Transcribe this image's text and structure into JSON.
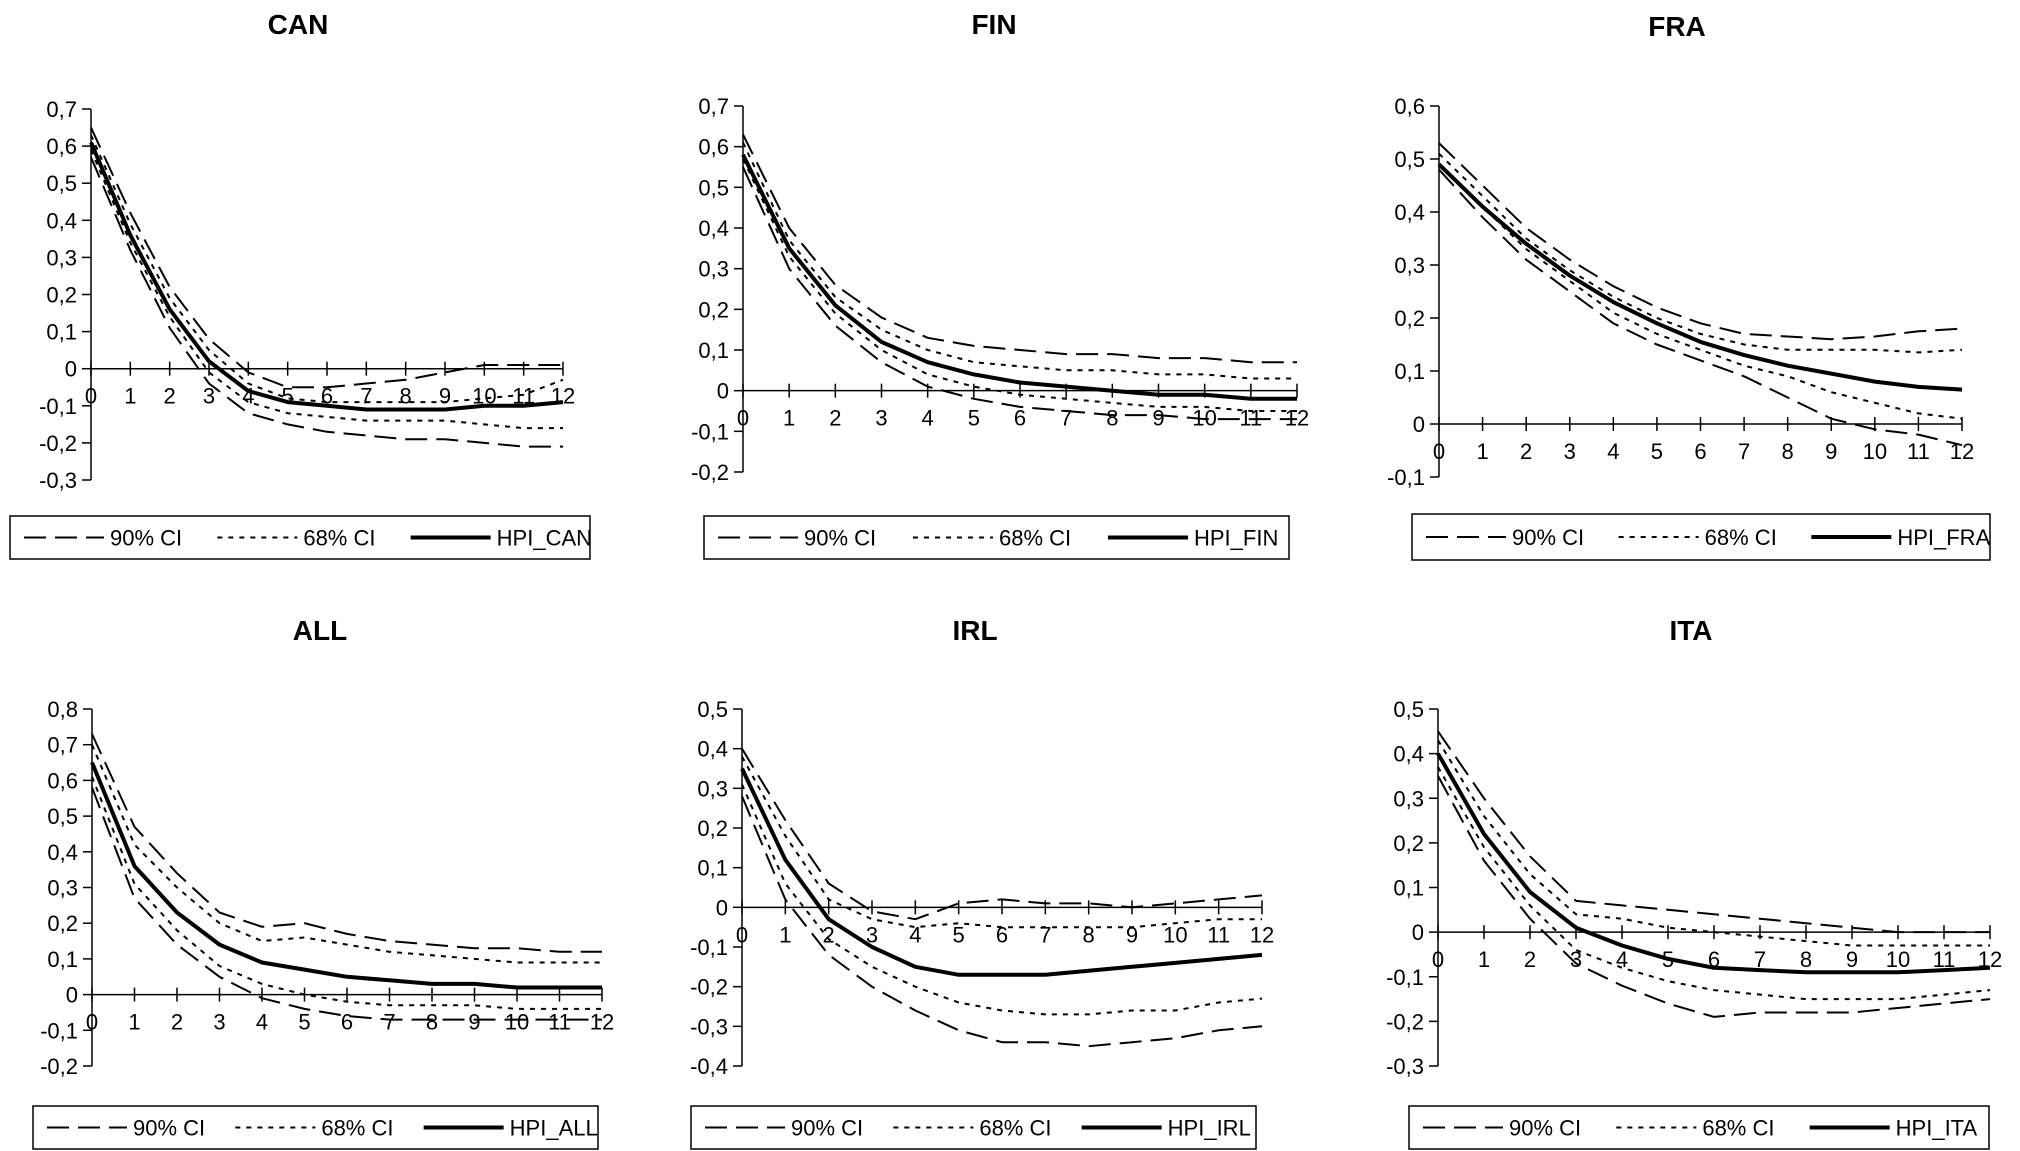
{
  "chart_data": [
    {
      "type": "line",
      "title": "CAN",
      "x": [
        0,
        1,
        2,
        3,
        4,
        5,
        6,
        7,
        8,
        9,
        10,
        11,
        12
      ],
      "ylim": [
        -0.3,
        0.7
      ],
      "yticks": [
        "0,7",
        "0,6",
        "0,5",
        "0,4",
        "0,3",
        "0,2",
        "0,1",
        "0",
        "-0,1",
        "-0,2",
        "-0,3"
      ],
      "xticks": [
        "0",
        "1",
        "2",
        "3",
        "4",
        "5",
        "6",
        "7",
        "8",
        "9",
        "10",
        "11",
        "12"
      ],
      "legend": [
        "90% CI",
        "68% CI",
        "HPI_CAN"
      ],
      "series": [
        {
          "name": "90% CI",
          "style": "dash",
          "values": [
            0.65,
            0.42,
            0.22,
            0.08,
            -0.01,
            -0.05,
            -0.05,
            -0.04,
            -0.03,
            -0.01,
            0.01,
            0.01,
            0.01
          ]
        },
        {
          "name": "90% CI",
          "style": "dash",
          "values": [
            0.57,
            0.32,
            0.11,
            -0.04,
            -0.12,
            -0.15,
            -0.17,
            -0.18,
            -0.19,
            -0.19,
            -0.2,
            -0.21,
            -0.21
          ]
        },
        {
          "name": "68% CI",
          "style": "dot",
          "values": [
            0.63,
            0.39,
            0.19,
            0.05,
            -0.04,
            -0.08,
            -0.09,
            -0.09,
            -0.09,
            -0.09,
            -0.08,
            -0.07,
            -0.03
          ]
        },
        {
          "name": "68% CI",
          "style": "dot",
          "values": [
            0.59,
            0.34,
            0.14,
            -0.01,
            -0.09,
            -0.12,
            -0.13,
            -0.14,
            -0.14,
            -0.14,
            -0.15,
            -0.16,
            -0.16
          ]
        },
        {
          "name": "HPI_CAN",
          "style": "solid",
          "values": [
            0.61,
            0.36,
            0.16,
            0.02,
            -0.06,
            -0.09,
            -0.1,
            -0.11,
            -0.11,
            -0.11,
            -0.1,
            -0.1,
            -0.09
          ]
        }
      ]
    },
    {
      "type": "line",
      "title": "FIN",
      "x": [
        0,
        1,
        2,
        3,
        4,
        5,
        6,
        7,
        8,
        9,
        10,
        11,
        12
      ],
      "ylim": [
        -0.2,
        0.7
      ],
      "yticks": [
        "0,7",
        "0,6",
        "0,5",
        "0,4",
        "0,3",
        "0,2",
        "0,1",
        "0",
        "-0,1",
        "-0,2"
      ],
      "xticks": [
        "0",
        "1",
        "2",
        "3",
        "4",
        "5",
        "6",
        "7",
        "8",
        "9",
        "10",
        "11",
        "12"
      ],
      "legend": [
        "90% CI",
        "68% CI",
        "HPI_FIN"
      ],
      "series": [
        {
          "name": "90% CI",
          "style": "dash",
          "values": [
            0.63,
            0.4,
            0.26,
            0.18,
            0.13,
            0.11,
            0.1,
            0.09,
            0.09,
            0.08,
            0.08,
            0.07,
            0.07
          ]
        },
        {
          "name": "90% CI",
          "style": "dash",
          "values": [
            0.55,
            0.3,
            0.16,
            0.07,
            0.01,
            -0.02,
            -0.04,
            -0.05,
            -0.06,
            -0.06,
            -0.07,
            -0.07,
            -0.07
          ]
        },
        {
          "name": "68% CI",
          "style": "dot",
          "values": [
            0.61,
            0.37,
            0.23,
            0.15,
            0.1,
            0.07,
            0.06,
            0.05,
            0.05,
            0.04,
            0.04,
            0.03,
            0.03
          ]
        },
        {
          "name": "68% CI",
          "style": "dot",
          "values": [
            0.57,
            0.33,
            0.19,
            0.1,
            0.04,
            0.01,
            -0.01,
            -0.02,
            -0.03,
            -0.04,
            -0.04,
            -0.05,
            -0.05
          ]
        },
        {
          "name": "HPI_FIN",
          "style": "solid",
          "values": [
            0.58,
            0.35,
            0.21,
            0.12,
            0.07,
            0.04,
            0.02,
            0.01,
            0.0,
            -0.01,
            -0.01,
            -0.02,
            -0.02
          ]
        }
      ]
    },
    {
      "type": "line",
      "title": "FRA",
      "x": [
        0,
        1,
        2,
        3,
        4,
        5,
        6,
        7,
        8,
        9,
        10,
        11,
        12
      ],
      "ylim": [
        -0.1,
        0.6
      ],
      "yticks": [
        "0,6",
        "0,5",
        "0,4",
        "0,3",
        "0,2",
        "0,1",
        "0",
        "-0,1"
      ],
      "xticks": [
        "0",
        "1",
        "2",
        "3",
        "4",
        "5",
        "6",
        "7",
        "8",
        "9",
        "10",
        "11",
        "12"
      ],
      "legend": [
        "90% CI",
        "68% CI",
        "HPI_FRA"
      ],
      "series": [
        {
          "name": "90% CI",
          "style": "dash",
          "values": [
            0.53,
            0.45,
            0.37,
            0.31,
            0.26,
            0.22,
            0.19,
            0.17,
            0.165,
            0.16,
            0.165,
            0.175,
            0.18
          ]
        },
        {
          "name": "90% CI",
          "style": "dash",
          "values": [
            0.48,
            0.39,
            0.31,
            0.25,
            0.19,
            0.15,
            0.12,
            0.09,
            0.05,
            0.01,
            -0.01,
            -0.02,
            -0.04
          ]
        },
        {
          "name": "68% CI",
          "style": "dot",
          "values": [
            0.51,
            0.43,
            0.35,
            0.29,
            0.24,
            0.2,
            0.17,
            0.15,
            0.14,
            0.14,
            0.14,
            0.135,
            0.14
          ]
        },
        {
          "name": "68% CI",
          "style": "dot",
          "values": [
            0.49,
            0.41,
            0.33,
            0.27,
            0.21,
            0.17,
            0.14,
            0.11,
            0.09,
            0.06,
            0.04,
            0.02,
            0.01
          ]
        },
        {
          "name": "HPI_FRA",
          "style": "solid",
          "values": [
            0.49,
            0.41,
            0.34,
            0.28,
            0.23,
            0.19,
            0.155,
            0.13,
            0.11,
            0.095,
            0.08,
            0.07,
            0.065
          ]
        }
      ]
    },
    {
      "type": "line",
      "title": "ALL",
      "x": [
        0,
        1,
        2,
        3,
        4,
        5,
        6,
        7,
        8,
        9,
        10,
        11,
        12
      ],
      "ylim": [
        -0.2,
        0.8
      ],
      "yticks": [
        "0,8",
        "0,7",
        "0,6",
        "0,5",
        "0,4",
        "0,3",
        "0,2",
        "0,1",
        "0",
        "-0,1",
        "-0,2"
      ],
      "xticks": [
        "0",
        "1",
        "2",
        "3",
        "4",
        "5",
        "6",
        "7",
        "8",
        "9",
        "10",
        "11",
        "12"
      ],
      "legend": [
        "90% CI",
        "68% CI",
        "HPI_ALL"
      ],
      "series": [
        {
          "name": "90% CI",
          "style": "dash",
          "values": [
            0.73,
            0.47,
            0.34,
            0.23,
            0.19,
            0.2,
            0.17,
            0.15,
            0.14,
            0.13,
            0.13,
            0.12,
            0.12
          ]
        },
        {
          "name": "90% CI",
          "style": "dash",
          "values": [
            0.58,
            0.27,
            0.14,
            0.05,
            -0.01,
            -0.04,
            -0.06,
            -0.07,
            -0.07,
            -0.07,
            -0.07,
            -0.07,
            -0.07
          ]
        },
        {
          "name": "68% CI",
          "style": "dot",
          "values": [
            0.7,
            0.42,
            0.3,
            0.2,
            0.15,
            0.16,
            0.14,
            0.12,
            0.11,
            0.1,
            0.09,
            0.09,
            0.09
          ]
        },
        {
          "name": "68% CI",
          "style": "dot",
          "values": [
            0.61,
            0.31,
            0.18,
            0.08,
            0.03,
            0.0,
            -0.02,
            -0.03,
            -0.03,
            -0.03,
            -0.04,
            -0.04,
            -0.04
          ]
        },
        {
          "name": "HPI_ALL",
          "style": "solid",
          "values": [
            0.65,
            0.36,
            0.23,
            0.14,
            0.09,
            0.07,
            0.05,
            0.04,
            0.03,
            0.03,
            0.02,
            0.02,
            0.02
          ]
        }
      ]
    },
    {
      "type": "line",
      "title": "IRL",
      "x": [
        0,
        1,
        2,
        3,
        4,
        5,
        6,
        7,
        8,
        9,
        10,
        11,
        12
      ],
      "ylim": [
        -0.4,
        0.5
      ],
      "yticks": [
        "0,5",
        "0,4",
        "0,3",
        "0,2",
        "0,1",
        "0",
        "-0,1",
        "-0,2",
        "-0,3",
        "-0,4"
      ],
      "xticks": [
        "0",
        "1",
        "2",
        "3",
        "4",
        "5",
        "6",
        "7",
        "8",
        "9",
        "10",
        "11",
        "12"
      ],
      "legend": [
        "90% CI",
        "68% CI",
        "HPI_IRL"
      ],
      "series": [
        {
          "name": "90% CI",
          "style": "dash",
          "values": [
            0.4,
            0.22,
            0.06,
            -0.01,
            -0.03,
            0.01,
            0.02,
            0.01,
            0.01,
            0.0,
            0.01,
            0.02,
            0.03
          ]
        },
        {
          "name": "90% CI",
          "style": "dash",
          "values": [
            0.28,
            0.02,
            -0.12,
            -0.2,
            -0.26,
            -0.31,
            -0.34,
            -0.34,
            -0.35,
            -0.34,
            -0.33,
            -0.31,
            -0.3
          ]
        },
        {
          "name": "68% CI",
          "style": "dot",
          "values": [
            0.38,
            0.18,
            0.02,
            -0.03,
            -0.05,
            -0.04,
            -0.05,
            -0.05,
            -0.05,
            -0.05,
            -0.04,
            -0.03,
            -0.03
          ]
        },
        {
          "name": "68% CI",
          "style": "dot",
          "values": [
            0.31,
            0.06,
            -0.08,
            -0.15,
            -0.2,
            -0.24,
            -0.26,
            -0.27,
            -0.27,
            -0.26,
            -0.26,
            -0.24,
            -0.23
          ]
        },
        {
          "name": "HPI_IRL",
          "style": "solid",
          "values": [
            0.35,
            0.12,
            -0.03,
            -0.1,
            -0.15,
            -0.17,
            -0.17,
            -0.17,
            -0.16,
            -0.15,
            -0.14,
            -0.13,
            -0.12
          ]
        }
      ]
    },
    {
      "type": "line",
      "title": "ITA",
      "x": [
        0,
        1,
        2,
        3,
        4,
        5,
        6,
        7,
        8,
        9,
        10,
        11,
        12
      ],
      "ylim": [
        -0.3,
        0.5
      ],
      "yticks": [
        "0,5",
        "0,4",
        "0,3",
        "0,2",
        "0,1",
        "0",
        "-0,1",
        "-0,2",
        "-0,3"
      ],
      "xticks": [
        "0",
        "1",
        "2",
        "3",
        "4",
        "5",
        "6",
        "7",
        "8",
        "9",
        "10",
        "11",
        "12"
      ],
      "legend": [
        "90% CI",
        "68% CI",
        "HPI_ITA"
      ],
      "series": [
        {
          "name": "90% CI",
          "style": "dash",
          "values": [
            0.45,
            0.3,
            0.17,
            0.07,
            0.06,
            0.05,
            0.04,
            0.03,
            0.02,
            0.01,
            0.0,
            0.0,
            0.0
          ]
        },
        {
          "name": "90% CI",
          "style": "dash",
          "values": [
            0.35,
            0.16,
            0.03,
            -0.07,
            -0.12,
            -0.16,
            -0.19,
            -0.18,
            -0.18,
            -0.18,
            -0.17,
            -0.16,
            -0.15
          ]
        },
        {
          "name": "68% CI",
          "style": "dot",
          "values": [
            0.43,
            0.26,
            0.13,
            0.04,
            0.03,
            0.01,
            0.0,
            -0.01,
            -0.02,
            -0.03,
            -0.03,
            -0.03,
            -0.03
          ]
        },
        {
          "name": "68% CI",
          "style": "dot",
          "values": [
            0.37,
            0.19,
            0.06,
            -0.04,
            -0.08,
            -0.11,
            -0.13,
            -0.14,
            -0.15,
            -0.15,
            -0.15,
            -0.14,
            -0.13
          ]
        },
        {
          "name": "HPI_ITA",
          "style": "solid",
          "values": [
            0.4,
            0.22,
            0.09,
            0.01,
            -0.03,
            -0.06,
            -0.08,
            -0.085,
            -0.09,
            -0.09,
            -0.09,
            -0.085,
            -0.08
          ]
        }
      ]
    }
  ]
}
